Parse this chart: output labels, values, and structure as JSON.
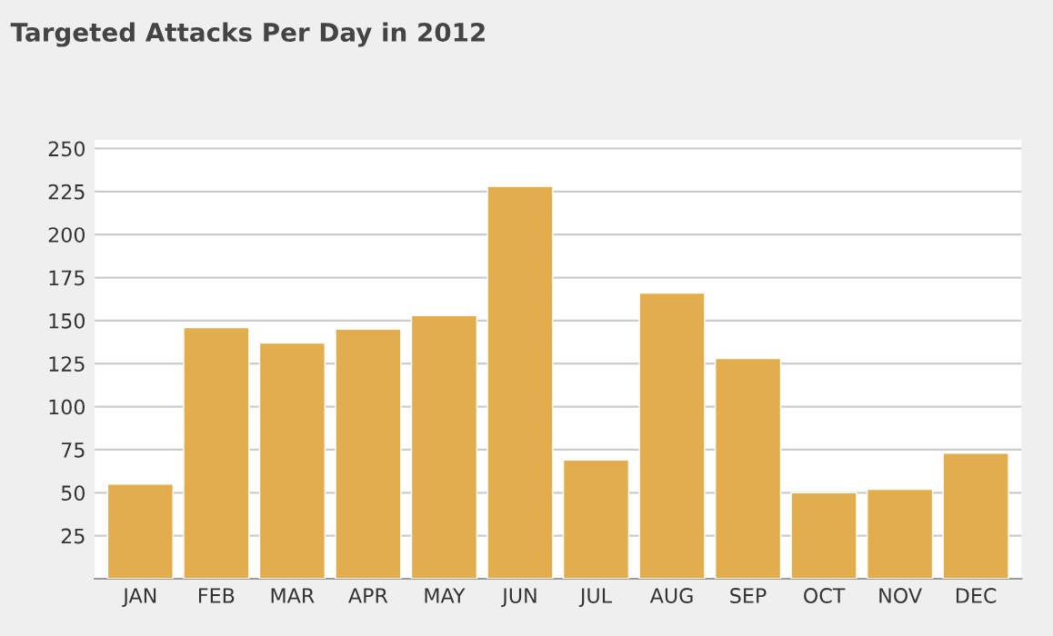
{
  "chart_data": {
    "type": "bar",
    "title": "Targeted Attacks Per Day in 2012",
    "categories": [
      "JAN",
      "FEB",
      "MAR",
      "APR",
      "MAY",
      "JUN",
      "JUL",
      "AUG",
      "SEP",
      "OCT",
      "NOV",
      "DEC"
    ],
    "values": [
      55,
      146,
      137,
      145,
      153,
      228,
      69,
      166,
      128,
      50,
      52,
      73
    ],
    "color": "#e3ac4c",
    "ylim": [
      0,
      255
    ],
    "yticks": [
      25,
      50,
      75,
      100,
      125,
      150,
      175,
      200,
      225,
      250
    ],
    "grid": "y"
  }
}
